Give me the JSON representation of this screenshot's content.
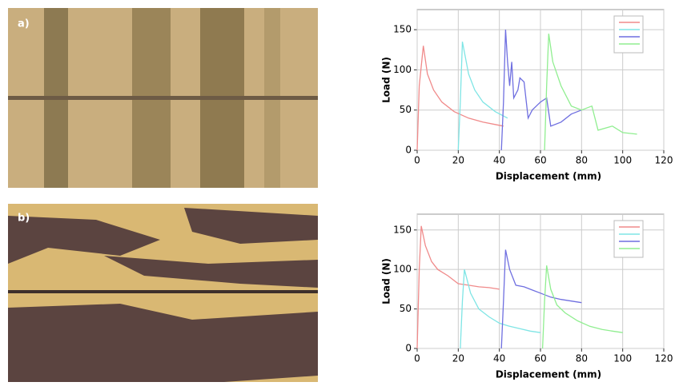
{
  "panels": [
    "a)",
    "b)"
  ],
  "chart_data": [
    {
      "type": "line",
      "xlabel": "Displacement (mm)",
      "ylabel": "Load (N)",
      "xlim": [
        0,
        120
      ],
      "xticks": [
        0,
        20,
        40,
        60,
        80,
        100,
        120
      ],
      "ylim": [
        0,
        175
      ],
      "yticks": [
        0,
        50,
        100,
        150
      ],
      "grid": true,
      "legend": "upper right",
      "series": [
        {
          "color": "#f08a8a",
          "x": [
            0,
            1,
            3,
            5,
            8,
            12,
            18,
            25,
            32,
            38,
            42
          ],
          "values": [
            0,
            80,
            130,
            95,
            75,
            60,
            48,
            40,
            35,
            32,
            30
          ]
        },
        {
          "color": "#7fe5e5",
          "x": [
            20,
            21,
            22,
            25,
            28,
            32,
            38,
            44
          ],
          "values": [
            0,
            60,
            135,
            95,
            75,
            60,
            48,
            40
          ]
        },
        {
          "color": "#6f6fe0",
          "x": [
            41,
            42,
            43,
            44,
            45,
            46,
            47,
            49,
            50,
            52,
            54,
            56,
            60,
            63,
            65,
            70,
            75,
            80
          ],
          "values": [
            0,
            60,
            150,
            110,
            80,
            110,
            65,
            75,
            90,
            85,
            40,
            50,
            60,
            65,
            30,
            35,
            45,
            50
          ]
        },
        {
          "color": "#90ee90",
          "x": [
            62,
            63,
            64,
            66,
            70,
            75,
            80,
            85,
            88,
            95,
            100,
            107
          ],
          "values": [
            0,
            80,
            145,
            110,
            80,
            55,
            50,
            55,
            25,
            30,
            22,
            20
          ]
        }
      ]
    },
    {
      "type": "line",
      "xlabel": "Displacement (mm)",
      "ylabel": "Load (N)",
      "xlim": [
        0,
        120
      ],
      "xticks": [
        0,
        20,
        40,
        60,
        80,
        100,
        120
      ],
      "ylim": [
        0,
        170
      ],
      "yticks": [
        0,
        50,
        100,
        150
      ],
      "grid": true,
      "legend": "upper right",
      "series": [
        {
          "color": "#f08a8a",
          "x": [
            0,
            1,
            2,
            4,
            7,
            10,
            15,
            20,
            25,
            30,
            35,
            40
          ],
          "values": [
            0,
            100,
            155,
            130,
            110,
            100,
            92,
            82,
            80,
            78,
            77,
            75
          ]
        },
        {
          "color": "#7fe5e5",
          "x": [
            21,
            22,
            23,
            26,
            30,
            35,
            40,
            45,
            50,
            55,
            60
          ],
          "values": [
            0,
            60,
            100,
            70,
            50,
            40,
            32,
            28,
            25,
            22,
            20
          ]
        },
        {
          "color": "#6f6fe0",
          "x": [
            41,
            42,
            43,
            45,
            48,
            52,
            56,
            60,
            65,
            70,
            75,
            80
          ],
          "values": [
            0,
            60,
            125,
            100,
            80,
            78,
            74,
            70,
            65,
            62,
            60,
            58
          ]
        },
        {
          "color": "#90ee90",
          "x": [
            61,
            62,
            63,
            65,
            68,
            72,
            78,
            84,
            90,
            95,
            100
          ],
          "values": [
            0,
            60,
            105,
            75,
            55,
            45,
            35,
            28,
            24,
            22,
            20
          ]
        }
      ]
    }
  ]
}
